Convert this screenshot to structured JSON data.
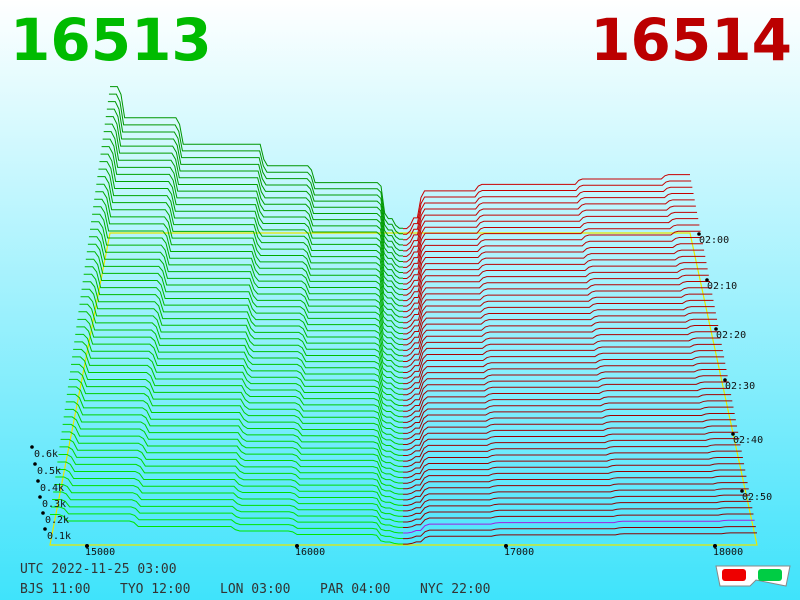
{
  "header": {
    "bid": "16513",
    "ask": "16514"
  },
  "price_axis": [
    "15000",
    "16000",
    "17000",
    "18000"
  ],
  "depth_axis": [
    "0.1k",
    "0.2k",
    "0.3k",
    "0.4k",
    "0.5k",
    "0.6k"
  ],
  "time_axis": [
    "02:00",
    "02:10",
    "02:20",
    "02:30",
    "02:40",
    "02:50"
  ],
  "footer": {
    "utc": "UTC 2022-11-25 03:00",
    "cities": [
      "BJS 11:00",
      "TYO 12:00",
      "LON 03:00",
      "PAR 04:00",
      "NYC 22:00"
    ]
  }
}
